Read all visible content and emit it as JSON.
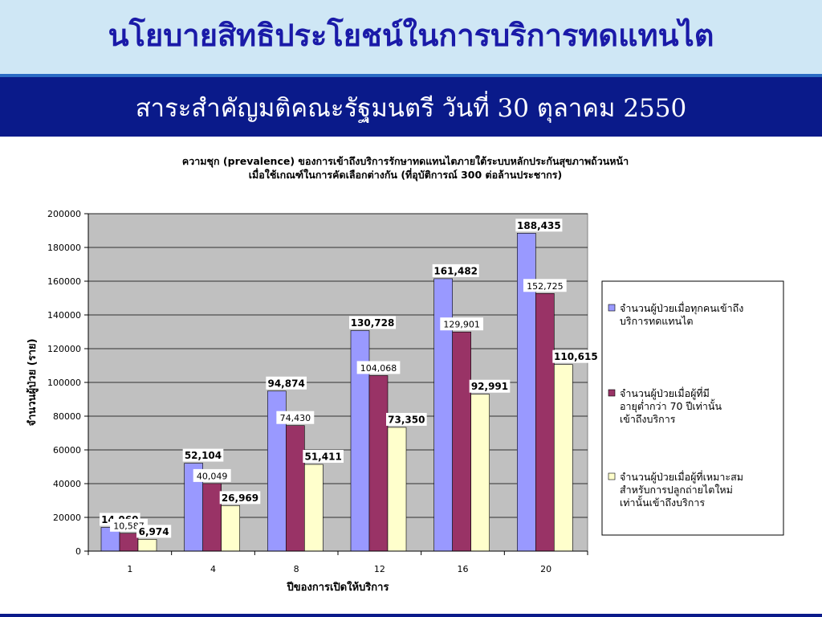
{
  "slide": {
    "title": "นโยบายสิทธิประโยชน์ในการบริการทดแทนไต",
    "subtitle": "สาระสำคัญมติคณะรัฐมนตรี วันที่ 30 ตุลาคม 2550"
  },
  "colors": {
    "series1": "#9999ff",
    "series2": "#993366",
    "series3": "#ffffcc",
    "plot_bg": "#c0c0c0"
  },
  "chart_data": {
    "type": "bar",
    "title_line1": "ความชุก (prevalence) ของการเข้าถึงบริการรักษาทดแทนไตภายใต้ระบบหลักประกันสุขภาพถ้วนหน้า",
    "title_line2": "เมื่อใช้เกณฑ์ในการคัดเลือกต่างกัน (ที่อุบัติการณ์ 300 ต่อล้านประชากร)",
    "xlabel": "ปีของการเปิดให้บริการ",
    "ylabel": "จำนวนผู้ป่วย (ราย)",
    "categories": [
      "1",
      "4",
      "8",
      "12",
      "16",
      "20"
    ],
    "ylim": [
      0,
      200000
    ],
    "yticks": [
      "0",
      "20000",
      "40000",
      "60000",
      "80000",
      "100000",
      "120000",
      "140000",
      "160000",
      "180000",
      "200000"
    ],
    "legend_position": "right",
    "series": [
      {
        "name_lines": [
          "จำนวนผู้ป่วยเมื่อทุกคนเข้าถึง",
          "บริการทดแทนไต"
        ],
        "values": [
          14060,
          52104,
          94874,
          130728,
          161482,
          188435
        ],
        "labels": [
          "14,060",
          "52,104",
          "94,874",
          "130,728",
          "161,482",
          "188,435"
        ]
      },
      {
        "name_lines": [
          "จำนวนผู้ป่วยเมื่อผู้ที่มี",
          "อายุต่ำกว่า 70 ปีเท่านั้น",
          "เข้าถึงบริการ"
        ],
        "values": [
          10587,
          40049,
          74430,
          104068,
          129901,
          152725
        ],
        "labels": [
          "10,587",
          "40,049",
          "74,430",
          "104,068",
          "129,901",
          "152,725"
        ]
      },
      {
        "name_lines": [
          "จำนวนผู้ป่วยเมื่อผู้ที่เหมาะสม",
          "สำหรับการปลูกถ่ายไตใหม่",
          "เท่านั้นเข้าถึงบริการ"
        ],
        "values": [
          6974,
          26969,
          51411,
          73350,
          92991,
          110615
        ],
        "labels": [
          "6,974",
          "26,969",
          "51,411",
          "73,350",
          "92,991",
          "110,615"
        ]
      }
    ]
  }
}
